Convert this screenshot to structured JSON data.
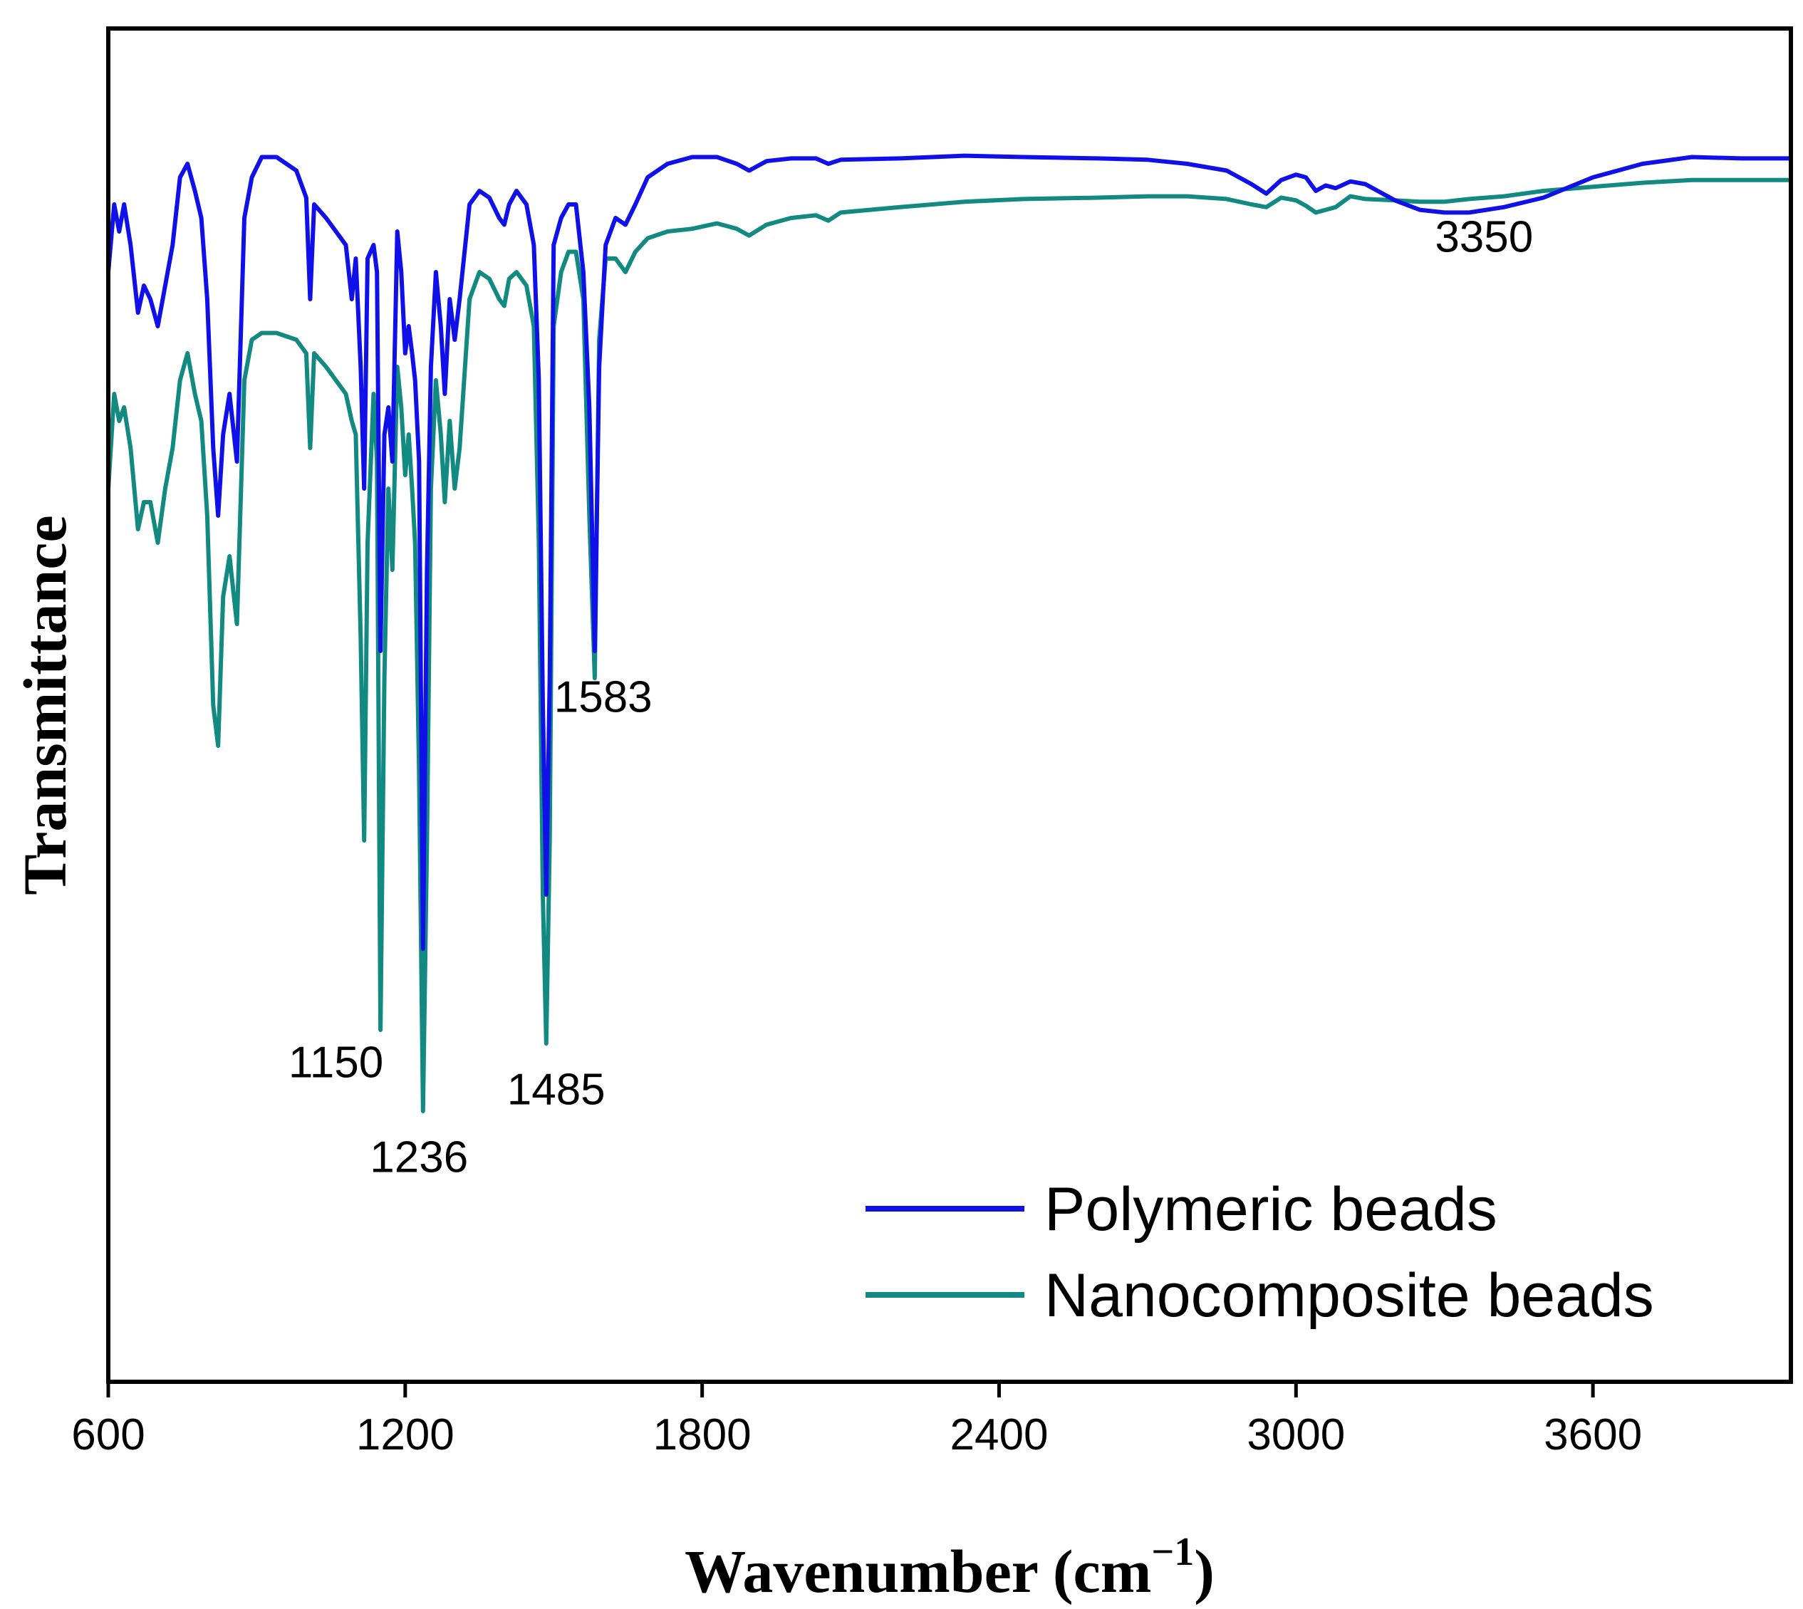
{
  "chart_data": {
    "type": "line",
    "title": "",
    "xlabel": "Wavenumber (cm",
    "xlabel_unit_sup": "−1",
    "xlabel_close": ")",
    "ylabel": "Transmittance",
    "xlim": [
      600,
      4000
    ],
    "ylim": [
      0,
      1
    ],
    "x_ticks": [
      600,
      1200,
      1800,
      2400,
      3000,
      3600
    ],
    "x_tick_labels": [
      "600",
      "1200",
      "1800",
      "2400",
      "3000",
      "3600"
    ],
    "y_ticks_shown": false,
    "legend_position": "bottom-right",
    "series": [
      {
        "name": "Polymeric beads",
        "color": "#1010e8",
        "points": [
          [
            600,
            0.82
          ],
          [
            612,
            0.87
          ],
          [
            622,
            0.85
          ],
          [
            632,
            0.87
          ],
          [
            645,
            0.84
          ],
          [
            660,
            0.79
          ],
          [
            672,
            0.81
          ],
          [
            685,
            0.8
          ],
          [
            700,
            0.78
          ],
          [
            715,
            0.81
          ],
          [
            730,
            0.84
          ],
          [
            745,
            0.89
          ],
          [
            760,
            0.9
          ],
          [
            775,
            0.88
          ],
          [
            788,
            0.86
          ],
          [
            800,
            0.8
          ],
          [
            812,
            0.69
          ],
          [
            822,
            0.64
          ],
          [
            832,
            0.7
          ],
          [
            845,
            0.73
          ],
          [
            860,
            0.68
          ],
          [
            875,
            0.86
          ],
          [
            890,
            0.89
          ],
          [
            910,
            0.905
          ],
          [
            940,
            0.905
          ],
          [
            980,
            0.895
          ],
          [
            1000,
            0.875
          ],
          [
            1008,
            0.8
          ],
          [
            1016,
            0.87
          ],
          [
            1040,
            0.86
          ],
          [
            1060,
            0.85
          ],
          [
            1080,
            0.84
          ],
          [
            1092,
            0.8
          ],
          [
            1100,
            0.83
          ],
          [
            1110,
            0.75
          ],
          [
            1117,
            0.66
          ],
          [
            1124,
            0.83
          ],
          [
            1136,
            0.84
          ],
          [
            1143,
            0.82
          ],
          [
            1150,
            0.54
          ],
          [
            1158,
            0.7
          ],
          [
            1166,
            0.72
          ],
          [
            1174,
            0.68
          ],
          [
            1184,
            0.85
          ],
          [
            1192,
            0.82
          ],
          [
            1200,
            0.76
          ],
          [
            1207,
            0.78
          ],
          [
            1214,
            0.76
          ],
          [
            1220,
            0.74
          ],
          [
            1228,
            0.68
          ],
          [
            1236,
            0.32
          ],
          [
            1244,
            0.6
          ],
          [
            1252,
            0.75
          ],
          [
            1262,
            0.82
          ],
          [
            1272,
            0.78
          ],
          [
            1280,
            0.73
          ],
          [
            1290,
            0.8
          ],
          [
            1300,
            0.77
          ],
          [
            1310,
            0.8
          ],
          [
            1330,
            0.87
          ],
          [
            1350,
            0.88
          ],
          [
            1370,
            0.875
          ],
          [
            1390,
            0.86
          ],
          [
            1400,
            0.855
          ],
          [
            1410,
            0.87
          ],
          [
            1425,
            0.88
          ],
          [
            1445,
            0.87
          ],
          [
            1460,
            0.84
          ],
          [
            1470,
            0.74
          ],
          [
            1478,
            0.5
          ],
          [
            1485,
            0.36
          ],
          [
            1492,
            0.52
          ],
          [
            1500,
            0.84
          ],
          [
            1515,
            0.86
          ],
          [
            1530,
            0.87
          ],
          [
            1545,
            0.87
          ],
          [
            1560,
            0.82
          ],
          [
            1572,
            0.72
          ],
          [
            1583,
            0.54
          ],
          [
            1592,
            0.75
          ],
          [
            1605,
            0.84
          ],
          [
            1625,
            0.86
          ],
          [
            1645,
            0.855
          ],
          [
            1665,
            0.87
          ],
          [
            1690,
            0.89
          ],
          [
            1730,
            0.9
          ],
          [
            1780,
            0.905
          ],
          [
            1830,
            0.905
          ],
          [
            1870,
            0.9
          ],
          [
            1895,
            0.895
          ],
          [
            1930,
            0.902
          ],
          [
            1980,
            0.904
          ],
          [
            2030,
            0.904
          ],
          [
            2055,
            0.9
          ],
          [
            2080,
            0.903
          ],
          [
            2200,
            0.904
          ],
          [
            2330,
            0.906
          ],
          [
            2450,
            0.905
          ],
          [
            2600,
            0.904
          ],
          [
            2700,
            0.903
          ],
          [
            2780,
            0.9
          ],
          [
            2860,
            0.895
          ],
          [
            2910,
            0.885
          ],
          [
            2940,
            0.878
          ],
          [
            2970,
            0.888
          ],
          [
            3000,
            0.892
          ],
          [
            3020,
            0.89
          ],
          [
            3040,
            0.88
          ],
          [
            3060,
            0.884
          ],
          [
            3080,
            0.882
          ],
          [
            3110,
            0.887
          ],
          [
            3140,
            0.885
          ],
          [
            3200,
            0.873
          ],
          [
            3250,
            0.866
          ],
          [
            3300,
            0.864
          ],
          [
            3350,
            0.864
          ],
          [
            3420,
            0.868
          ],
          [
            3500,
            0.875
          ],
          [
            3600,
            0.89
          ],
          [
            3700,
            0.9
          ],
          [
            3800,
            0.905
          ],
          [
            3900,
            0.904
          ],
          [
            4000,
            0.904
          ]
        ]
      },
      {
        "name": "Nanocomposite beads",
        "color": "#128a82",
        "points": [
          [
            600,
            0.66
          ],
          [
            612,
            0.73
          ],
          [
            622,
            0.71
          ],
          [
            632,
            0.72
          ],
          [
            645,
            0.69
          ],
          [
            660,
            0.63
          ],
          [
            672,
            0.65
          ],
          [
            685,
            0.65
          ],
          [
            700,
            0.62
          ],
          [
            715,
            0.66
          ],
          [
            730,
            0.69
          ],
          [
            745,
            0.74
          ],
          [
            760,
            0.76
          ],
          [
            775,
            0.73
          ],
          [
            788,
            0.71
          ],
          [
            800,
            0.64
          ],
          [
            812,
            0.5
          ],
          [
            822,
            0.47
          ],
          [
            832,
            0.58
          ],
          [
            845,
            0.61
          ],
          [
            860,
            0.56
          ],
          [
            875,
            0.74
          ],
          [
            890,
            0.77
          ],
          [
            910,
            0.775
          ],
          [
            940,
            0.775
          ],
          [
            980,
            0.77
          ],
          [
            1000,
            0.76
          ],
          [
            1008,
            0.69
          ],
          [
            1016,
            0.76
          ],
          [
            1040,
            0.75
          ],
          [
            1060,
            0.74
          ],
          [
            1080,
            0.73
          ],
          [
            1092,
            0.71
          ],
          [
            1100,
            0.7
          ],
          [
            1110,
            0.55
          ],
          [
            1117,
            0.4
          ],
          [
            1124,
            0.62
          ],
          [
            1136,
            0.73
          ],
          [
            1143,
            0.68
          ],
          [
            1150,
            0.26
          ],
          [
            1158,
            0.52
          ],
          [
            1166,
            0.66
          ],
          [
            1174,
            0.6
          ],
          [
            1184,
            0.75
          ],
          [
            1192,
            0.72
          ],
          [
            1200,
            0.67
          ],
          [
            1207,
            0.7
          ],
          [
            1214,
            0.66
          ],
          [
            1220,
            0.62
          ],
          [
            1228,
            0.45
          ],
          [
            1236,
            0.2
          ],
          [
            1244,
            0.4
          ],
          [
            1252,
            0.66
          ],
          [
            1262,
            0.74
          ],
          [
            1272,
            0.7
          ],
          [
            1280,
            0.65
          ],
          [
            1290,
            0.71
          ],
          [
            1300,
            0.66
          ],
          [
            1310,
            0.69
          ],
          [
            1330,
            0.8
          ],
          [
            1350,
            0.82
          ],
          [
            1370,
            0.815
          ],
          [
            1390,
            0.8
          ],
          [
            1400,
            0.795
          ],
          [
            1410,
            0.815
          ],
          [
            1425,
            0.82
          ],
          [
            1445,
            0.81
          ],
          [
            1460,
            0.78
          ],
          [
            1470,
            0.62
          ],
          [
            1478,
            0.36
          ],
          [
            1485,
            0.25
          ],
          [
            1492,
            0.4
          ],
          [
            1500,
            0.78
          ],
          [
            1515,
            0.82
          ],
          [
            1530,
            0.835
          ],
          [
            1545,
            0.835
          ],
          [
            1560,
            0.8
          ],
          [
            1572,
            0.64
          ],
          [
            1583,
            0.52
          ],
          [
            1592,
            0.77
          ],
          [
            1605,
            0.83
          ],
          [
            1625,
            0.83
          ],
          [
            1645,
            0.82
          ],
          [
            1665,
            0.835
          ],
          [
            1690,
            0.845
          ],
          [
            1730,
            0.85
          ],
          [
            1780,
            0.852
          ],
          [
            1830,
            0.856
          ],
          [
            1870,
            0.852
          ],
          [
            1895,
            0.847
          ],
          [
            1930,
            0.855
          ],
          [
            1980,
            0.86
          ],
          [
            2030,
            0.862
          ],
          [
            2055,
            0.858
          ],
          [
            2080,
            0.864
          ],
          [
            2200,
            0.868
          ],
          [
            2330,
            0.872
          ],
          [
            2450,
            0.874
          ],
          [
            2600,
            0.875
          ],
          [
            2700,
            0.876
          ],
          [
            2780,
            0.876
          ],
          [
            2860,
            0.874
          ],
          [
            2910,
            0.87
          ],
          [
            2940,
            0.868
          ],
          [
            2970,
            0.875
          ],
          [
            3000,
            0.873
          ],
          [
            3020,
            0.869
          ],
          [
            3040,
            0.864
          ],
          [
            3060,
            0.866
          ],
          [
            3080,
            0.868
          ],
          [
            3110,
            0.876
          ],
          [
            3140,
            0.874
          ],
          [
            3200,
            0.873
          ],
          [
            3250,
            0.872
          ],
          [
            3300,
            0.872
          ],
          [
            3350,
            0.874
          ],
          [
            3420,
            0.876
          ],
          [
            3500,
            0.88
          ],
          [
            3600,
            0.883
          ],
          [
            3700,
            0.886
          ],
          [
            3800,
            0.888
          ],
          [
            3900,
            0.888
          ],
          [
            4000,
            0.888
          ]
        ]
      }
    ],
    "annotations": [
      {
        "text": "3350",
        "x": 3380,
        "y": 0.835
      },
      {
        "text": "1583",
        "x": 1600,
        "y": 0.495
      },
      {
        "text": "1150",
        "x": 1060,
        "y": 0.225
      },
      {
        "text": "1485",
        "x": 1505,
        "y": 0.205
      },
      {
        "text": "1236",
        "x": 1228,
        "y": 0.155
      }
    ]
  }
}
